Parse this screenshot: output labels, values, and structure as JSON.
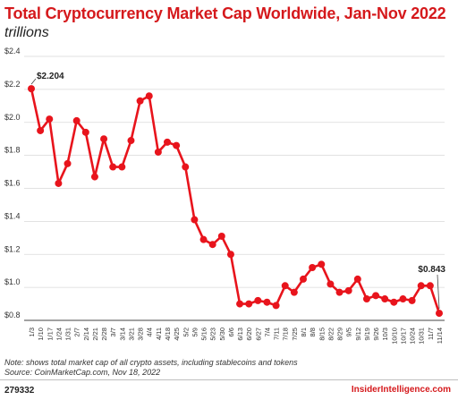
{
  "chart_data": {
    "type": "line",
    "title": "Total Cryptocurrency Market Cap Worldwide, Jan-Nov 2022",
    "subtitle": "trillions",
    "xlabel": "",
    "ylabel": "",
    "ylim": [
      0.8,
      2.4
    ],
    "yticks": [
      "$2.4",
      "$2.2",
      "$2.0",
      "$1.8",
      "$1.6",
      "$1.4",
      "$1.2",
      "$1.0",
      "$0.8"
    ],
    "ytick_values": [
      2.4,
      2.2,
      2.0,
      1.8,
      1.6,
      1.4,
      1.2,
      1.0,
      0.8
    ],
    "grid": true,
    "categories": [
      "1/3",
      "1/10",
      "1/17",
      "1/24",
      "1/31",
      "2/7",
      "2/14",
      "2/21",
      "2/28",
      "3/7",
      "3/14",
      "3/21",
      "3/28",
      "4/4",
      "4/11",
      "4/18",
      "4/25",
      "5/2",
      "5/9",
      "5/16",
      "5/23",
      "5/30",
      "6/6",
      "6/13",
      "6/20",
      "6/27",
      "7/4",
      "7/11",
      "7/18",
      "7/25",
      "8/1",
      "8/8",
      "8/15",
      "8/22",
      "8/29",
      "9/5",
      "9/12",
      "9/19",
      "9/26",
      "10/3",
      "10/10",
      "10/17",
      "10/24",
      "10/31",
      "11/7",
      "11/14"
    ],
    "values": [
      2.204,
      1.95,
      2.02,
      1.63,
      1.75,
      2.01,
      1.94,
      1.67,
      1.9,
      1.73,
      1.73,
      1.89,
      2.13,
      2.16,
      1.82,
      1.88,
      1.86,
      1.73,
      1.41,
      1.29,
      1.26,
      1.31,
      1.2,
      0.9,
      0.9,
      0.92,
      0.91,
      0.89,
      1.01,
      0.97,
      1.05,
      1.12,
      1.14,
      1.02,
      0.97,
      0.98,
      1.05,
      0.93,
      0.95,
      0.93,
      0.91,
      0.93,
      0.92,
      1.01,
      1.01,
      0.843
    ],
    "data_labels": [
      {
        "index": 0,
        "text": "$2.204"
      },
      {
        "index": 45,
        "text": "$0.843"
      }
    ],
    "color": "#e8141c"
  },
  "notes": {
    "note": "Note: shows total market cap of all crypto assets, including stablecoins and tokens",
    "source": "Source: CoinMarketCap.com, Nov 18, 2022"
  },
  "footer": {
    "chart_id": "279332",
    "brand": "InsiderIntelligence.com"
  }
}
